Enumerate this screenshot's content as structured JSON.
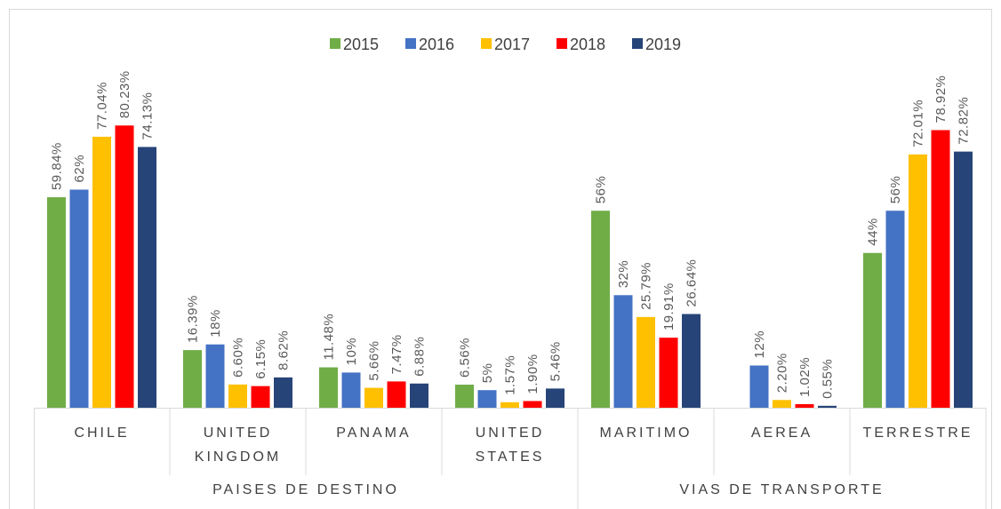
{
  "chart_data": {
    "type": "bar",
    "groups": [
      {
        "name": "PAISES DE DESTINO",
        "categories": [
          "CHILE",
          "UNITED KINGDOM",
          "PANAMA",
          "UNITED STATES"
        ]
      },
      {
        "name": "VIAS DE TRANSPORTE",
        "categories": [
          "MARITIMO",
          "AEREA",
          "TERRESTRE"
        ]
      }
    ],
    "series": [
      {
        "name": "2015",
        "color": "#70ad47",
        "values": [
          59.84,
          16.39,
          11.48,
          6.56,
          56,
          null,
          44
        ],
        "value_labels": [
          "59.84%",
          "16.39%",
          "11.48%",
          "6.56%",
          "56%",
          null,
          "44%"
        ]
      },
      {
        "name": "2016",
        "color": "#4472c4",
        "values": [
          62,
          18,
          10,
          5,
          32,
          12,
          56
        ],
        "value_labels": [
          "62%",
          "18%",
          "10%",
          "5%",
          "32%",
          "12%",
          "56%"
        ]
      },
      {
        "name": "2017",
        "color": "#ffc000",
        "values": [
          77.04,
          6.6,
          5.66,
          1.57,
          25.79,
          2.2,
          72.01
        ],
        "value_labels": [
          "77.04%",
          "6.60%",
          "5.66%",
          "1.57%",
          "25.79%",
          "2.20%",
          "72.01%"
        ]
      },
      {
        "name": "2018",
        "color": "#ff0000",
        "values": [
          80.23,
          6.15,
          7.47,
          1.9,
          19.91,
          1.02,
          78.92
        ],
        "value_labels": [
          "80.23%",
          "6.15%",
          "7.47%",
          "1.90%",
          "19.91%",
          "1.02%",
          "78.92%"
        ]
      },
      {
        "name": "2019",
        "color": "#264478",
        "values": [
          74.13,
          8.62,
          6.88,
          5.46,
          26.64,
          0.55,
          72.82
        ],
        "value_labels": [
          "74.13%",
          "8.62%",
          "6.88%",
          "5.46%",
          "26.64%",
          "0.55%",
          "72.82%"
        ]
      }
    ]
  }
}
